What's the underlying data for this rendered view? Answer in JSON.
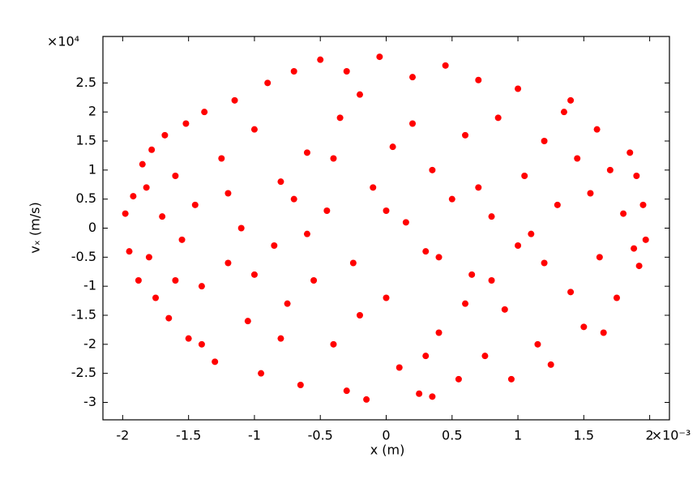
{
  "chart_data": {
    "type": "scatter",
    "xlabel": "x (m)",
    "ylabel": "vₓ (m/s)",
    "x_multiplier": "×10⁻³",
    "y_multiplier": "×10⁴",
    "color": "#ff0000",
    "xlim": [
      -2.15,
      2.15
    ],
    "ylim": [
      -3.3,
      3.3
    ],
    "xticks": [
      -2,
      -1.5,
      -1,
      -0.5,
      0,
      0.5,
      1,
      1.5,
      2
    ],
    "yticks": [
      -3,
      -2.5,
      -2,
      -1.5,
      -1,
      -0.5,
      0,
      0.5,
      1,
      1.5,
      2,
      2.5
    ],
    "x": [
      -1.98,
      -1.95,
      -1.92,
      -1.88,
      -1.85,
      -1.82,
      -1.8,
      -1.78,
      -1.75,
      -1.7,
      -1.68,
      -1.65,
      -1.6,
      -1.55,
      -1.52,
      -1.5,
      -1.45,
      -1.4,
      -1.38,
      -1.3,
      -1.25,
      -1.2,
      -1.15,
      -1.1,
      -1.05,
      -1.0,
      -0.95,
      -0.9,
      -0.85,
      -0.8,
      -0.75,
      -0.7,
      -0.65,
      -0.6,
      -0.55,
      -0.5,
      -0.45,
      -0.4,
      -0.35,
      -0.3,
      -0.25,
      -0.2,
      -0.15,
      -0.1,
      -0.05,
      0.0,
      0.05,
      0.1,
      0.15,
      0.2,
      0.25,
      0.3,
      0.35,
      0.4,
      0.45,
      0.5,
      0.55,
      0.6,
      0.65,
      0.7,
      0.75,
      0.8,
      0.85,
      0.9,
      0.95,
      1.0,
      1.05,
      1.1,
      1.15,
      1.2,
      1.25,
      1.3,
      1.35,
      1.4,
      1.45,
      1.5,
      1.55,
      1.6,
      1.62,
      1.65,
      1.7,
      1.75,
      1.8,
      1.85,
      1.88,
      1.9,
      1.92,
      1.95,
      1.97,
      -1.6,
      -1.2,
      -0.8,
      -0.4,
      0.0,
      0.4,
      0.8,
      1.2,
      -0.6,
      0.6,
      -1.0,
      1.0,
      0.2,
      -0.2,
      0.3,
      -0.7,
      0.7,
      -1.4,
      1.4,
      -0.3,
      0.35
    ],
    "values": [
      0.25,
      -0.4,
      0.55,
      -0.9,
      1.1,
      0.7,
      -0.5,
      1.35,
      -1.2,
      0.2,
      1.6,
      -1.55,
      0.9,
      -0.2,
      1.8,
      -1.9,
      0.4,
      -1.0,
      2.0,
      -2.3,
      1.2,
      -0.6,
      2.2,
      0.0,
      -1.6,
      1.7,
      -2.5,
      2.5,
      -0.3,
      0.8,
      -1.3,
      2.7,
      -2.7,
      1.3,
      -0.9,
      2.9,
      0.3,
      -2.0,
      1.9,
      -2.8,
      -0.6,
      2.3,
      -2.95,
      0.7,
      2.95,
      -1.2,
      1.4,
      -2.4,
      0.1,
      2.6,
      -2.85,
      -0.4,
      1.0,
      -1.8,
      2.8,
      0.5,
      -2.6,
      1.6,
      -0.8,
      2.55,
      -2.2,
      0.2,
      1.9,
      -1.4,
      -2.6,
      2.4,
      0.9,
      -0.1,
      -2.0,
      1.5,
      -2.35,
      0.4,
      2.0,
      -1.1,
      1.2,
      -1.7,
      0.6,
      1.7,
      -0.5,
      -1.8,
      1.0,
      -1.2,
      0.25,
      1.3,
      -0.35,
      0.9,
      -0.65,
      0.4,
      -0.2,
      -0.9,
      0.6,
      -1.9,
      1.2,
      0.3,
      -0.5,
      -0.9,
      -0.6,
      -0.1,
      -1.3,
      -0.8,
      -0.3,
      1.8,
      -1.5,
      -2.2,
      0.5,
      0.7,
      -2.0,
      2.2,
      2.7,
      -2.9
    ]
  }
}
